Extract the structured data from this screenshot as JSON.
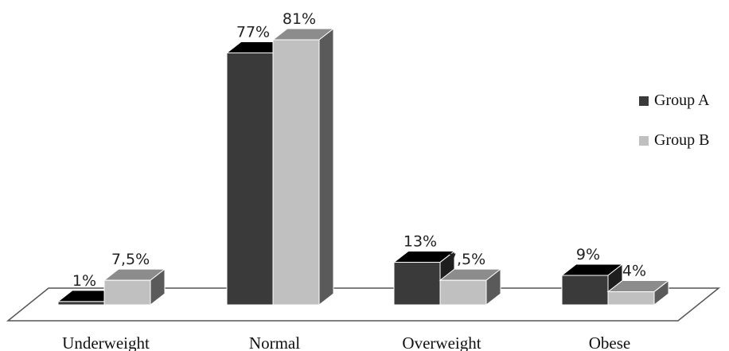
{
  "chart_data": {
    "type": "bar",
    "categories": [
      "Underweight",
      "Normal",
      "Overweight",
      "Obese"
    ],
    "series": [
      {
        "name": "Group A",
        "values": [
          1,
          77,
          13,
          9
        ],
        "labels": [
          "1%",
          "77%",
          "13%",
          "9%"
        ]
      },
      {
        "name": "Group B",
        "values": [
          7.5,
          81,
          7.5,
          4
        ],
        "labels": [
          "7,5%",
          "81%",
          "7,5%",
          "4%"
        ]
      }
    ],
    "legend_position": "right",
    "grid": false,
    "ylim": [
      0,
      81
    ]
  },
  "colors": {
    "group_a": "#3a3a3a",
    "group_b": "#c0c0c0"
  }
}
